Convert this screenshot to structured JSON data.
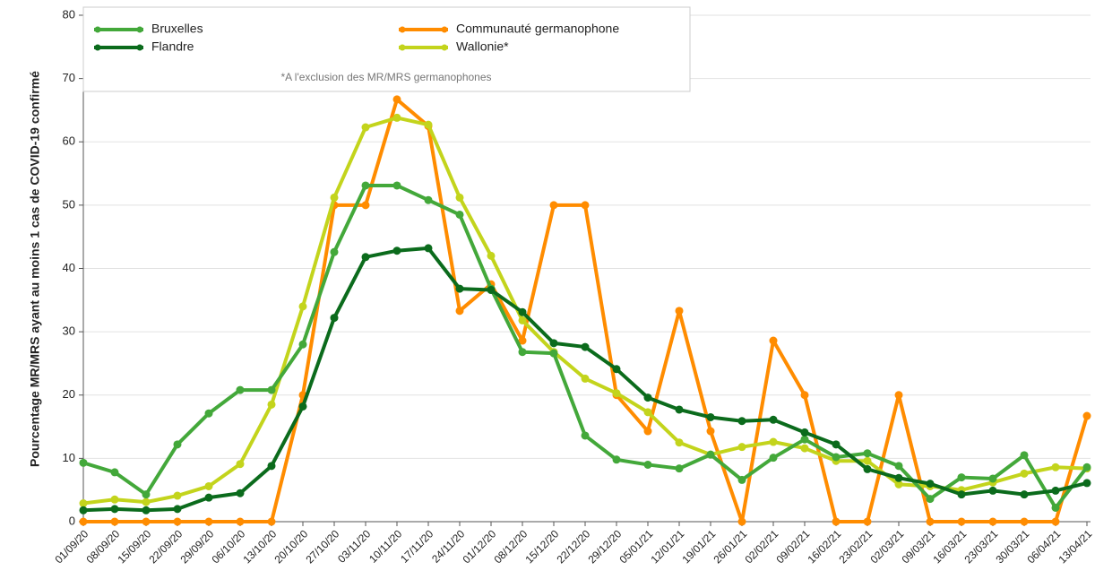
{
  "chart_data": {
    "type": "line",
    "y_label": "Pourcentage MR/MRS ayant au moins 1 cas de COVID-19 confirmé",
    "annotation": "*A l'exclusion des MR/MRS germanophones",
    "categories": [
      "01/09/20",
      "08/09/20",
      "15/09/20",
      "22/09/20",
      "29/09/20",
      "06/10/20",
      "13/10/20",
      "20/10/20",
      "27/10/20",
      "03/11/20",
      "10/11/20",
      "17/11/20",
      "24/11/20",
      "01/12/20",
      "08/12/20",
      "15/12/20",
      "22/12/20",
      "29/12/20",
      "05/01/21",
      "12/01/21",
      "19/01/21",
      "26/01/21",
      "02/02/21",
      "09/02/21",
      "16/02/21",
      "23/02/21",
      "02/03/21",
      "09/03/21",
      "16/03/21",
      "23/03/21",
      "30/03/21",
      "06/04/21",
      "13/04/21"
    ],
    "series": [
      {
        "name": "Bruxelles",
        "color": "#43a83a",
        "values": [
          9.3,
          7.8,
          4.3,
          12.2,
          17.1,
          20.8,
          20.8,
          28,
          42.6,
          53.1,
          53.1,
          50.8,
          48.5,
          36.8,
          26.8,
          26.6,
          13.6,
          9.8,
          9.0,
          8.4,
          10.6,
          6.6,
          10.1,
          13.0,
          10.2,
          10.8,
          8.8,
          3.6,
          7.0,
          6.8,
          10.5,
          2.2,
          8.6
        ]
      },
      {
        "name": "Communauté germanophone",
        "color": "#ff8c00",
        "values": [
          0,
          0,
          0,
          0,
          0,
          0,
          0,
          20,
          50,
          50,
          66.7,
          62.5,
          33.3,
          37.5,
          28.6,
          50,
          50,
          20,
          14.3,
          33.3,
          14.3,
          0,
          28.6,
          20,
          0,
          0,
          20,
          0,
          0,
          0,
          0,
          0,
          16.7
        ]
      },
      {
        "name": "Flandre",
        "color": "#0b6b1c",
        "values": [
          1.8,
          2.0,
          1.8,
          2.0,
          3.8,
          4.5,
          8.8,
          18.2,
          32.2,
          41.8,
          42.8,
          43.2,
          36.8,
          36.6,
          33.1,
          28.2,
          27.6,
          24.1,
          19.6,
          17.7,
          16.5,
          15.9,
          16.1,
          14.1,
          12.2,
          8.3,
          6.9,
          6.0,
          4.3,
          4.9,
          4.3,
          4.9,
          6.1
        ]
      },
      {
        "name": "Wallonie*",
        "color": "#c3d41c",
        "values": [
          2.9,
          3.5,
          3.1,
          4.1,
          5.6,
          9.1,
          18.5,
          34,
          51.2,
          62.3,
          63.8,
          62.7,
          51.2,
          42.0,
          31.8,
          26.8,
          22.6,
          20.3,
          17.3,
          12.5,
          10.6,
          11.8,
          12.6,
          11.6,
          9.6,
          9.6,
          5.9,
          5.6,
          5.0,
          6.2,
          7.6,
          8.6,
          8.4
        ]
      }
    ],
    "ylim": [
      0,
      80
    ],
    "yticks": [
      0,
      10,
      20,
      30,
      40,
      50,
      60,
      70,
      80
    ],
    "grid": true,
    "legend": "upper left"
  }
}
